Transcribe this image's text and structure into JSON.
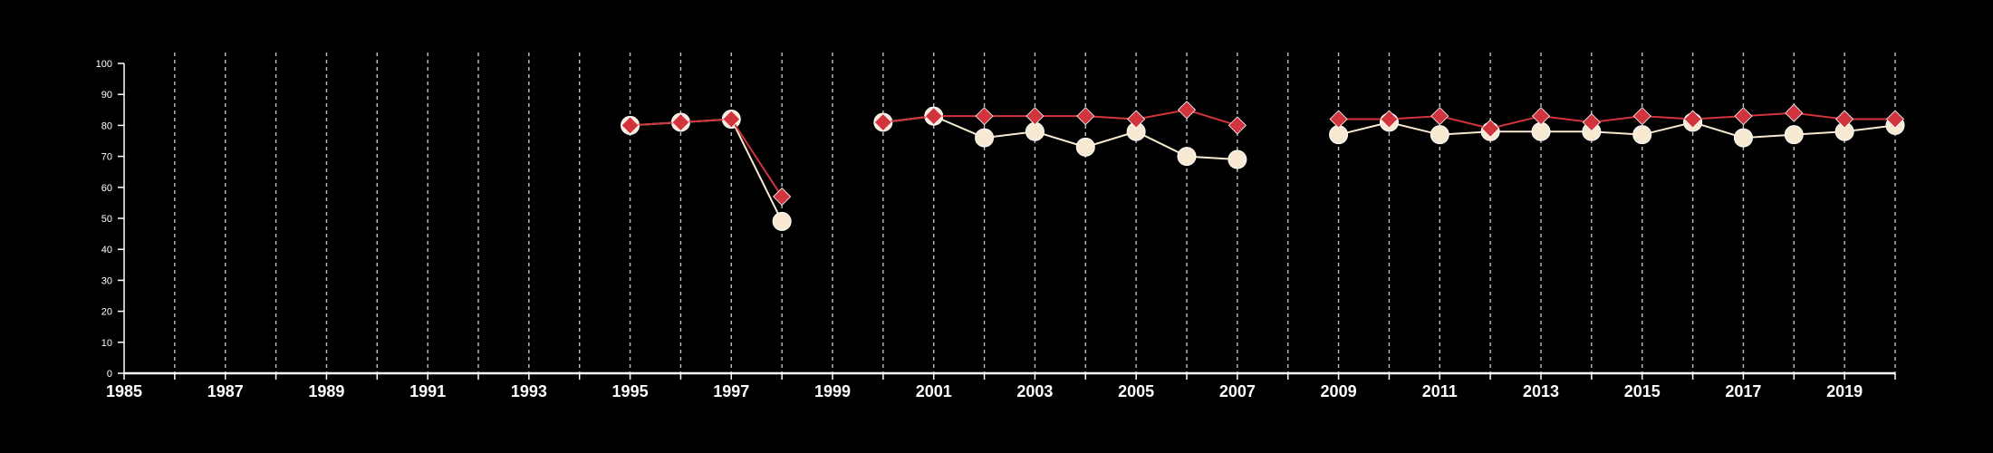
{
  "chart_data": {
    "type": "line",
    "title": "",
    "xlabel": "",
    "ylabel": "",
    "xlim": [
      1985,
      2020
    ],
    "ylim": [
      0,
      100
    ],
    "x_ticks": [
      1985,
      1987,
      1989,
      1991,
      1993,
      1995,
      1997,
      1999,
      2001,
      2003,
      2005,
      2007,
      2009,
      2011,
      2013,
      2015,
      2017,
      2019
    ],
    "x_tick_labels": [
      "1985",
      "1987",
      "1989",
      "1991",
      "1993",
      "1995",
      "1997",
      "1999",
      "2001",
      "2003",
      "2005",
      "2007",
      "2009",
      "2011",
      "2013",
      "2015",
      "2017",
      "2019"
    ],
    "y_ticks": [
      0,
      10,
      20,
      30,
      40,
      50,
      60,
      70,
      80,
      90,
      100
    ],
    "y_tick_labels": [
      "0",
      "10",
      "20",
      "30",
      "40",
      "50",
      "60",
      "70",
      "80",
      "90",
      "100"
    ],
    "vertical_gridlines": "dashed at every year",
    "legend": "none",
    "series": [
      {
        "marker": "circle",
        "color": "#f7e9d2",
        "segments": [
          {
            "x": [
              1995,
              1996,
              1997,
              1998
            ],
            "y": [
              80,
              81,
              82,
              49
            ]
          },
          {
            "x": [
              2000,
              2001,
              2002,
              2003,
              2004,
              2005,
              2006,
              2007
            ],
            "y": [
              81,
              83,
              76,
              78,
              73,
              78,
              70,
              69
            ]
          },
          {
            "x": [
              2009,
              2010,
              2011,
              2012,
              2013,
              2014,
              2015,
              2016,
              2017,
              2018,
              2019,
              2020
            ],
            "y": [
              77,
              81,
              77,
              78,
              78,
              78,
              77,
              81,
              76,
              77,
              78,
              80
            ]
          }
        ]
      },
      {
        "marker": "diamond",
        "color": "#d1343c",
        "segments": [
          {
            "x": [
              1995,
              1996,
              1997,
              1998
            ],
            "y": [
              80,
              81,
              82,
              57
            ]
          },
          {
            "x": [
              2000,
              2001,
              2002,
              2003,
              2004,
              2005,
              2006,
              2007
            ],
            "y": [
              81,
              83,
              83,
              83,
              83,
              82,
              85,
              80
            ]
          },
          {
            "x": [
              2009,
              2010,
              2011,
              2012,
              2013,
              2014,
              2015,
              2016,
              2017,
              2018,
              2019,
              2020
            ],
            "y": [
              82,
              82,
              83,
              79,
              83,
              81,
              83,
              82,
              83,
              84,
              82,
              82
            ]
          }
        ]
      }
    ]
  }
}
